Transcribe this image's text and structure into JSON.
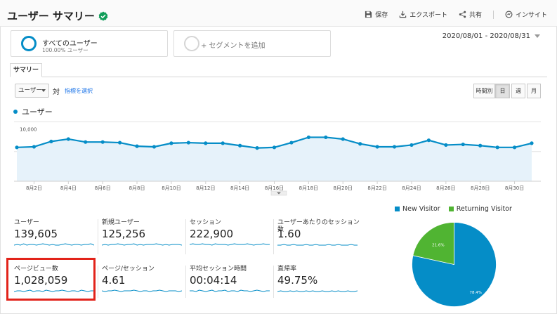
{
  "header": {
    "title": "ユーザー サマリー",
    "actions": [
      {
        "icon": "save-icon",
        "label": "保存"
      },
      {
        "icon": "export-icon",
        "label": "エクスポート"
      },
      {
        "icon": "share-icon",
        "label": "共有"
      },
      {
        "icon": "insight-icon",
        "label": "インサイト"
      }
    ]
  },
  "segments": {
    "primary": {
      "name": "すべてのユーザー",
      "sub": "100.00% ユーザー"
    },
    "add_label": "+ セグメントを追加"
  },
  "date_range": "2020/08/01 - 2020/08/31",
  "tab_label": "サマリー",
  "controls": {
    "metric_select": "ユーザー",
    "versus": "対",
    "pick_metric": "指標を選択",
    "granularity": [
      "時間別",
      "日",
      "週",
      "月"
    ],
    "active_granularity": "日"
  },
  "colors": {
    "primary": "#058dc7",
    "secondary": "#50b432",
    "fill": "#e6f2fa",
    "highlight": "#e2231a"
  },
  "chart_data": [
    {
      "type": "area",
      "legend": "ユーザー",
      "y_ticks": [
        "10,000",
        "5,000"
      ],
      "ylim": [
        0,
        11000
      ],
      "x": [
        "8月1日",
        "8月2日",
        "8月3日",
        "8月4日",
        "8月5日",
        "8月6日",
        "8月7日",
        "8月8日",
        "8月9日",
        "8月10日",
        "8月11日",
        "8月12日",
        "8月13日",
        "8月14日",
        "8月15日",
        "8月16日",
        "8月17日",
        "8月18日",
        "8月19日",
        "8月20日",
        "8月21日",
        "8月22日",
        "8月23日",
        "8月24日",
        "8月25日",
        "8月26日",
        "8月27日",
        "8月28日",
        "8月29日",
        "8月30日",
        "8月31日"
      ],
      "x_tick_labels": [
        "8月2日",
        "8月4日",
        "8月6日",
        "8月8日",
        "8月10日",
        "8月12日",
        "8月14日",
        "8月16日",
        "8月18日",
        "8月20日",
        "8月22日",
        "8月24日",
        "8月26日",
        "8月28日",
        "8月30日"
      ],
      "series": [
        {
          "values": [
            5700,
            5800,
            6700,
            7100,
            6600,
            6600,
            6500,
            5900,
            5800,
            6400,
            6500,
            6400,
            6400,
            6000,
            5600,
            5700,
            6500,
            7400,
            7400,
            7100,
            6300,
            5800,
            5800,
            6100,
            6900,
            6100,
            6200,
            6000,
            5700,
            5700,
            6400
          ]
        }
      ]
    },
    {
      "type": "pie",
      "slices": [
        {
          "name": "New Visitor",
          "value": 78.4,
          "label": "78.4%",
          "color": "#058dc7"
        },
        {
          "name": "Returning Visitor",
          "value": 21.6,
          "label": "21.6%",
          "color": "#50b432"
        }
      ]
    }
  ],
  "metrics": [
    {
      "label": "ユーザー",
      "value": "139,605"
    },
    {
      "label": "新規ユーザー",
      "value": "125,256"
    },
    {
      "label": "セッション",
      "value": "222,900"
    },
    {
      "label": "ユーザーあたりのセッション数",
      "value": "1.60"
    },
    {
      "label": "ページビュー数",
      "value": "1,028,059"
    },
    {
      "label": "ページ/セッション",
      "value": "4.61"
    },
    {
      "label": "平均セッション時間",
      "value": "00:04:14"
    },
    {
      "label": "直帰率",
      "value": "49.75%"
    }
  ]
}
